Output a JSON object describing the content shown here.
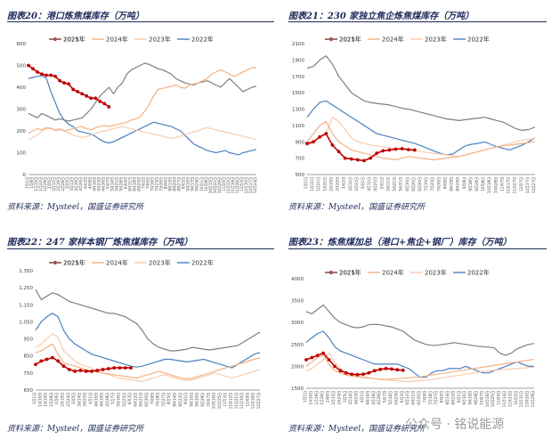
{
  "panels": [
    {
      "title": "图表20：港口炼焦煤库存（万吨）",
      "source": "资料来源：Mysteel，国盛证券研究所"
    },
    {
      "title": "图表21：230 家独立焦企炼焦煤库存（万吨）",
      "source": "资料来源：Mysteel，国盛证券研究所"
    },
    {
      "title": "图表22：247 家样本钢厂炼焦煤库存（万吨）",
      "source": "资料来源：Mysteel，国盛证券研究所"
    },
    {
      "title": "图表23：炼焦煤加总（港口+焦企+钢厂）库存（万吨）",
      "source": "资料来源：Mysteel，国盛证券研究所"
    }
  ],
  "watermark": "公众号 · 铭说能源",
  "series_colors": {
    "2025年": "#c00000",
    "2024年": "#f4b183",
    "2023年": "#f8cbad",
    "2022年": "#4a7fc1",
    "2021年": "#7f7f7f"
  },
  "chart_data": [
    {
      "type": "line",
      "title": "图表20：港口炼焦煤库存（万吨）",
      "ylim": [
        0,
        600
      ],
      "yticks": [
        "0",
        "100",
        "200",
        "300",
        "400",
        "500",
        "600"
      ],
      "xticks": [
        "1月1日",
        "1月8日",
        "1月15日",
        "1月22日",
        "1月29日",
        "2月5日",
        "2月12日",
        "2月19日",
        "2月26日",
        "3月5日",
        "3月12日",
        "3月19日",
        "3月26日",
        "4月2日",
        "4月9日",
        "4月16日",
        "4月23日",
        "4月30日",
        "5月7日",
        "5月14日",
        "5月21日",
        "5月28日",
        "6月4日",
        "6月11日",
        "6月18日",
        "6月25日",
        "7月2日",
        "7月9日",
        "7月16日",
        "7月23日",
        "7月30日",
        "8月6日",
        "8月13日",
        "8月20日",
        "8月27日",
        "9月3日",
        "9月10日",
        "9月17日",
        "9月24日",
        "10月1日",
        "10月8日",
        "10月15日",
        "10月22日",
        "10月29日",
        "11月5日",
        "11月12日",
        "11月19日",
        "11月26日",
        "12月3日",
        "12月10日",
        "12月17日",
        "12月24日"
      ],
      "legend": "top",
      "series": [
        {
          "name": "2025年",
          "values": [
            500,
            485,
            470,
            460,
            455,
            455,
            450,
            430,
            420,
            415,
            390,
            380,
            370,
            360,
            350,
            350,
            335,
            325,
            310
          ]
        },
        {
          "name": "2024年",
          "values": [
            190,
            200,
            210,
            205,
            215,
            210,
            205,
            210,
            200,
            205,
            210,
            215,
            220,
            210,
            205,
            215,
            220,
            225,
            220,
            225,
            230,
            235,
            240,
            250,
            255,
            265,
            290,
            320,
            360,
            390,
            395,
            400,
            405,
            410,
            400,
            395,
            410,
            415,
            420,
            430,
            440,
            460,
            470,
            480,
            470,
            460,
            450,
            460,
            470,
            480,
            490,
            490
          ]
        },
        {
          "name": "2023年",
          "values": [
            160,
            170,
            180,
            200,
            210,
            215,
            200,
            205,
            200,
            190,
            180,
            175,
            170,
            175,
            180,
            190,
            195,
            200,
            205,
            210,
            215,
            220,
            215,
            210,
            205,
            200,
            195,
            190,
            185,
            180,
            175,
            170,
            165,
            170,
            175,
            185,
            190,
            195,
            200,
            210,
            215,
            210,
            205,
            200,
            195,
            190,
            185,
            180,
            175,
            170,
            165,
            160
          ]
        },
        {
          "name": "2022年",
          "values": [
            440,
            445,
            450,
            455,
            440,
            380,
            330,
            280,
            250,
            230,
            220,
            200,
            195,
            190,
            185,
            175,
            160,
            150,
            145,
            150,
            160,
            170,
            180,
            190,
            200,
            210,
            220,
            230,
            240,
            235,
            230,
            225,
            220,
            210,
            200,
            180,
            160,
            140,
            130,
            120,
            110,
            105,
            100,
            105,
            110,
            100,
            95,
            90,
            100,
            105,
            110,
            115
          ]
        },
        {
          "name": "2021年",
          "values": [
            280,
            270,
            260,
            280,
            270,
            260,
            250,
            255,
            250,
            245,
            250,
            255,
            260,
            280,
            300,
            330,
            360,
            380,
            400,
            370,
            400,
            420,
            460,
            480,
            490,
            500,
            510,
            505,
            495,
            485,
            480,
            470,
            460,
            440,
            430,
            420,
            415,
            410,
            420,
            425,
            430,
            420,
            410,
            400,
            420,
            440,
            420,
            400,
            380,
            390,
            400,
            405
          ]
        }
      ]
    },
    {
      "type": "line",
      "title": "图表21：230 家独立焦企炼焦煤库存（万吨）",
      "ylim": [
        500,
        2100
      ],
      "yticks": [
        "500",
        "700",
        "900",
        "1100",
        "1300",
        "1500",
        "1700",
        "1900",
        "2100"
      ],
      "xticks": [
        "1月1日",
        "1月11日",
        "1月21日",
        "1月31日",
        "2月10日",
        "2月20日",
        "3月2日",
        "3月12日",
        "3月22日",
        "4月1日",
        "4月11日",
        "4月21日",
        "5月1日",
        "5月11日",
        "5月21日",
        "5月31日",
        "6月10日",
        "6月20日",
        "6月30日",
        "7月10日",
        "7月20日",
        "7月30日",
        "8月9日",
        "8月19日",
        "8月29日",
        "9月8日",
        "9月18日",
        "9月28日",
        "10月8日",
        "10月18日",
        "10月28日",
        "11月7日",
        "11月17日",
        "11月27日",
        "12月7日",
        "12月17日",
        "12月27日"
      ],
      "legend": "top",
      "series": [
        {
          "name": "2025年",
          "values": [
            880,
            900,
            960,
            1000,
            860,
            780,
            700,
            690,
            680,
            670,
            700,
            760,
            790,
            800,
            810,
            815,
            805,
            800
          ]
        },
        {
          "name": "2024年",
          "values": [
            900,
            1000,
            1100,
            1150,
            1000,
            900,
            850,
            800,
            780,
            760,
            740,
            720,
            700,
            690,
            680,
            700,
            720,
            710,
            700,
            690,
            680,
            690,
            700,
            710,
            720,
            740,
            760,
            780,
            800,
            820,
            840,
            850,
            860,
            870,
            880,
            890,
            900
          ]
        },
        {
          "name": "2023年",
          "values": [
            850,
            900,
            950,
            1000,
            1200,
            1150,
            1050,
            950,
            900,
            880,
            860,
            850,
            840,
            830,
            820,
            810,
            800,
            790,
            780,
            770,
            760,
            750,
            740,
            730,
            720,
            740,
            760,
            780,
            800,
            820,
            840,
            860,
            880,
            900,
            920,
            930,
            940
          ]
        },
        {
          "name": "2022年",
          "values": [
            1200,
            1300,
            1380,
            1400,
            1350,
            1300,
            1250,
            1200,
            1150,
            1100,
            1050,
            1000,
            980,
            960,
            940,
            920,
            900,
            880,
            850,
            820,
            790,
            760,
            740,
            750,
            800,
            850,
            870,
            880,
            900,
            870,
            840,
            820,
            800,
            830,
            860,
            900,
            950
          ]
        },
        {
          "name": "2021年",
          "values": [
            1800,
            1820,
            1900,
            1950,
            1850,
            1700,
            1600,
            1500,
            1450,
            1400,
            1380,
            1370,
            1360,
            1350,
            1330,
            1310,
            1300,
            1280,
            1260,
            1240,
            1220,
            1200,
            1180,
            1170,
            1160,
            1170,
            1180,
            1190,
            1200,
            1180,
            1160,
            1140,
            1100,
            1060,
            1040,
            1050,
            1080
          ]
        }
      ]
    },
    {
      "type": "line",
      "title": "图表22：247 家样本钢厂炼焦煤库存（万吨）",
      "ylim": [
        650,
        1350
      ],
      "yticks": [
        "650",
        "750",
        "850",
        "950",
        "1,050",
        "1,150",
        "1,250",
        "1,350"
      ],
      "xticks": [
        "1月1日",
        "1月10日",
        "1月19日",
        "1月28日",
        "2月6日",
        "2月15日",
        "2月24日",
        "3月5日",
        "3月14日",
        "3月23日",
        "4月1日",
        "4月10日",
        "4月19日",
        "4月28日",
        "5月7日",
        "5月16日",
        "5月25日",
        "6月3日",
        "6月12日",
        "6月21日",
        "6月30日",
        "7月9日",
        "7月18日",
        "7月27日",
        "8月5日",
        "8月14日",
        "8月23日",
        "9月1日",
        "9月10日",
        "9月19日",
        "9月28日",
        "10月7日",
        "10月16日",
        "10月25日",
        "11月3日",
        "11月12日",
        "11月21日",
        "11月30日",
        "12月9日",
        "12月18日",
        "12月27日"
      ],
      "legend": "top",
      "series": [
        {
          "name": "2025年",
          "values": [
            800,
            820,
            830,
            840,
            820,
            790,
            770,
            760,
            765,
            760,
            760,
            765,
            770,
            775,
            780,
            780,
            780,
            780
          ]
        },
        {
          "name": "2024年",
          "values": [
            870,
            880,
            900,
            920,
            860,
            810,
            800,
            790,
            780,
            770,
            760,
            755,
            750,
            745,
            740,
            735,
            730,
            725,
            720,
            730,
            740,
            750,
            760,
            750,
            740,
            730,
            720,
            715,
            720,
            730,
            740,
            750,
            760,
            770,
            780,
            790,
            800,
            810,
            820,
            830,
            840
          ]
        },
        {
          "name": "2023年",
          "values": [
            900,
            920,
            950,
            980,
            960,
            880,
            850,
            820,
            800,
            790,
            780,
            760,
            750,
            740,
            730,
            720,
            715,
            710,
            705,
            700,
            710,
            720,
            730,
            740,
            730,
            720,
            710,
            705,
            710,
            720,
            730,
            740,
            750,
            740,
            730,
            720,
            730,
            740,
            750,
            760,
            770
          ]
        },
        {
          "name": "2022年",
          "values": [
            1000,
            1050,
            1080,
            1100,
            1080,
            1000,
            950,
            920,
            900,
            880,
            860,
            850,
            840,
            830,
            820,
            810,
            800,
            790,
            785,
            790,
            800,
            810,
            820,
            830,
            830,
            825,
            820,
            815,
            820,
            825,
            830,
            820,
            810,
            800,
            790,
            780,
            800,
            820,
            840,
            860,
            870
          ]
        },
        {
          "name": "2021年",
          "values": [
            1240,
            1180,
            1200,
            1220,
            1210,
            1190,
            1170,
            1160,
            1150,
            1140,
            1130,
            1120,
            1110,
            1100,
            1100,
            1090,
            1080,
            1060,
            1040,
            1000,
            950,
            920,
            900,
            890,
            880,
            880,
            885,
            890,
            900,
            895,
            890,
            885,
            890,
            895,
            900,
            905,
            910,
            930,
            950,
            970,
            990
          ]
        }
      ]
    },
    {
      "type": "line",
      "title": "图表23：炼焦煤加总（港口+焦企+钢厂）库存（万吨）",
      "ylim": [
        1500,
        4000
      ],
      "yticks": [
        "1500",
        "2000",
        "2500",
        "3000",
        "3500",
        "4000"
      ],
      "xticks": [
        "1月1日",
        "1月10日",
        "1月19日",
        "1月28日",
        "2月6日",
        "2月15日",
        "2月24日",
        "3月5日",
        "3月14日",
        "3月23日",
        "4月1日",
        "4月10日",
        "4月19日",
        "4月28日",
        "5月7日",
        "5月16日",
        "5月25日",
        "6月3日",
        "6月12日",
        "6月21日",
        "6月30日",
        "7月9日",
        "7月18日",
        "7月27日",
        "8月5日",
        "8月14日",
        "8月23日",
        "9月1日",
        "9月10日",
        "9月19日",
        "9月28日",
        "10月7日",
        "10月16日",
        "10月25日",
        "11月5日",
        "11月14日",
        "11月23日",
        "12月2日",
        "12月11日",
        "12月20日",
        "12月29日"
      ],
      "legend": "top",
      "series": [
        {
          "name": "2025年",
          "values": [
            2150,
            2200,
            2250,
            2300,
            2150,
            2000,
            1900,
            1850,
            1820,
            1810,
            1820,
            1850,
            1900,
            1930,
            1950,
            1940,
            1920,
            1910
          ]
        },
        {
          "name": "2024年",
          "values": [
            2000,
            2100,
            2200,
            2250,
            2050,
            1900,
            1850,
            1800,
            1780,
            1760,
            1740,
            1730,
            1720,
            1710,
            1700,
            1710,
            1720,
            1730,
            1740,
            1750,
            1760,
            1780,
            1800,
            1820,
            1840,
            1860,
            1880,
            1900,
            1920,
            1940,
            1960,
            1980,
            2000,
            2020,
            2040,
            2060,
            2080,
            2100,
            2120,
            2140,
            2160
          ]
        },
        {
          "name": "2023年",
          "values": [
            1900,
            1950,
            2050,
            2150,
            2300,
            2100,
            1950,
            1850,
            1800,
            1780,
            1760,
            1740,
            1720,
            1700,
            1690,
            1680,
            1670,
            1660,
            1650,
            1660,
            1670,
            1680,
            1700,
            1720,
            1740,
            1760,
            1780,
            1800,
            1820,
            1840,
            1860,
            1880,
            1900,
            1910,
            1920,
            1930,
            1940,
            1950,
            1960,
            1970,
            1980
          ]
        },
        {
          "name": "2022年",
          "values": [
            2550,
            2650,
            2750,
            2800,
            2650,
            2450,
            2350,
            2300,
            2250,
            2200,
            2150,
            2100,
            2050,
            2050,
            2050,
            2050,
            2050,
            2000,
            1950,
            1850,
            1750,
            1750,
            1850,
            1900,
            1900,
            1950,
            1950,
            1950,
            2000,
            1950,
            1900,
            1850,
            1850,
            1900,
            1950,
            2000,
            2050,
            2100,
            2050,
            2000,
            2000
          ]
        },
        {
          "name": "2021年",
          "values": [
            3250,
            3200,
            3300,
            3400,
            3250,
            3100,
            3000,
            2950,
            2900,
            2880,
            2900,
            2950,
            2960,
            2950,
            2920,
            2900,
            2850,
            2800,
            2700,
            2600,
            2550,
            2500,
            2480,
            2480,
            2500,
            2520,
            2540,
            2520,
            2500,
            2480,
            2460,
            2450,
            2440,
            2420,
            2300,
            2250,
            2300,
            2400,
            2450,
            2500,
            2520
          ]
        }
      ]
    }
  ]
}
